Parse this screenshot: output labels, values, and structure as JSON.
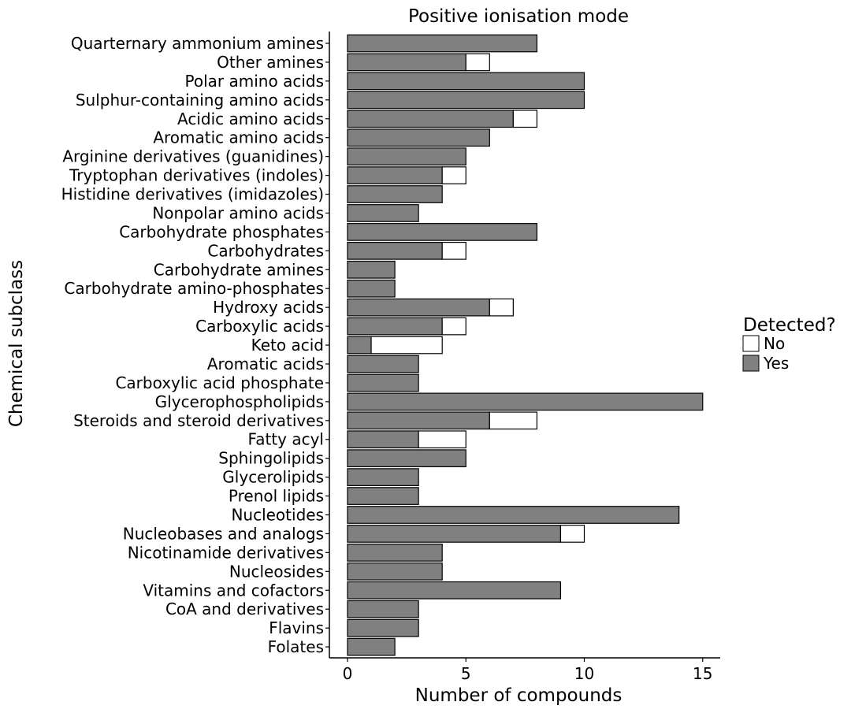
{
  "chart_data": {
    "type": "bar",
    "orientation": "horizontal",
    "stacked": true,
    "title": "Positive ionisation mode",
    "xlabel": "Number of compounds",
    "ylabel": "Chemical subclass",
    "xlim": [
      0,
      15.8
    ],
    "xticks": [
      0,
      5,
      10,
      15
    ],
    "grid": false,
    "legend": {
      "title": "Detected?",
      "placement": "right",
      "entries": [
        {
          "label": "No",
          "color": "#ffffff"
        },
        {
          "label": "Yes",
          "color": "#808080"
        }
      ]
    },
    "categories": [
      "Quarternary ammonium amines",
      "Other amines",
      "Polar amino acids",
      "Sulphur-containing amino acids",
      "Acidic amino acids",
      "Aromatic amino acids",
      "Arginine derivatives (guanidines)",
      "Tryptophan derivatives (indoles)",
      "Histidine derivatives (imidazoles)",
      "Nonpolar amino acids",
      "Carbohydrate phosphates",
      "Carbohydrates",
      "Carbohydrate amines",
      "Carbohydrate amino-phosphates",
      "Hydroxy acids",
      "Carboxylic acids",
      "Keto acid",
      "Aromatic acids",
      "Carboxylic acid phosphate",
      "Glycerophospholipids",
      "Steroids and steroid derivatives",
      "Fatty acyl",
      "Sphingolipids",
      "Glycerolipids",
      "Prenol lipids",
      "Nucleotides",
      "Nucleobases and analogs",
      "Nicotinamide derivatives",
      "Nucleosides",
      "Vitamins and cofactors",
      "CoA and derivatives",
      "Flavins",
      "Folates"
    ],
    "series": [
      {
        "name": "Yes",
        "color": "#808080",
        "values": [
          8,
          5,
          10,
          10,
          7,
          6,
          5,
          4,
          4,
          3,
          8,
          4,
          2,
          2,
          6,
          4,
          1,
          3,
          3,
          15,
          6,
          3,
          5,
          3,
          3,
          14,
          9,
          4,
          4,
          9,
          3,
          3,
          2
        ]
      },
      {
        "name": "No",
        "color": "#ffffff",
        "values": [
          0,
          1,
          0,
          0,
          1,
          0,
          0,
          1,
          0,
          0,
          0,
          1,
          0,
          0,
          1,
          1,
          3,
          0,
          0,
          0,
          2,
          2,
          0,
          0,
          0,
          0,
          1,
          0,
          0,
          0,
          0,
          0,
          0
        ]
      }
    ]
  }
}
